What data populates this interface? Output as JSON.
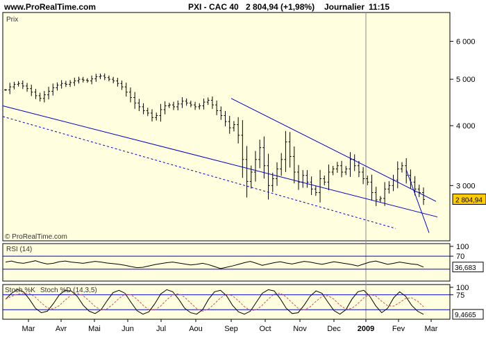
{
  "header": {
    "site": "www.ProRealTime.com",
    "instrument": "PXI - CAC 40",
    "price_change": "2 804,94 (+1,98%)",
    "frequency": "Journalier",
    "time": "11:15"
  },
  "colors": {
    "panel_bg": "#ffffe0",
    "price_line": "#000000",
    "trendline": "#0000cc",
    "tag_bg": "#ffcc00",
    "stoch_signal": "#d05050",
    "year_marker": "#888888"
  },
  "chart_data": [
    {
      "type": "ohlc",
      "panel_label": "Prix",
      "watermark": "© ProRealTime.com",
      "y_ticks": [
        3000,
        4000,
        5000,
        6000
      ],
      "y_tick_labels": [
        "3 000",
        "4 000",
        "5 000",
        "6 000"
      ],
      "y_scale": "log",
      "ylim": [
        2300,
        6800
      ],
      "last_value_label": "2 804,94",
      "last_value": 2804.94,
      "x_labels": [
        "Mar",
        "Avr",
        "Mai",
        "Jun",
        "Jul",
        "Aou",
        "Sep",
        "Oct",
        "Nov",
        "Dec",
        "2009",
        "Fev",
        "Mar"
      ],
      "year_marker": "2009",
      "series_close": [
        4750,
        4820,
        4880,
        4900,
        4840,
        4780,
        4700,
        4620,
        4560,
        4640,
        4720,
        4800,
        4860,
        4900,
        4880,
        4920,
        4960,
        5000,
        4980,
        4960,
        5010,
        5060,
        5080,
        5040,
        5000,
        4960,
        4900,
        4820,
        4700,
        4580,
        4460,
        4380,
        4300,
        4250,
        4160,
        4200,
        4320,
        4400,
        4420,
        4380,
        4440,
        4500,
        4460,
        4420,
        4380,
        4400,
        4480,
        4520,
        4420,
        4300,
        4200,
        4080,
        3960,
        4020,
        3820,
        3400,
        3060,
        3200,
        3400,
        3600,
        3300,
        3000,
        3100,
        3250,
        3400,
        3700,
        3450,
        3200,
        3050,
        3150,
        3050,
        2950,
        2900,
        3100,
        3050,
        3200,
        3250,
        3300,
        3200,
        3250,
        3400,
        3300,
        3200,
        3100,
        3050,
        2900,
        2800,
        2820,
        2950,
        3000,
        3080,
        3250,
        3300,
        3150,
        3050,
        2950,
        2900,
        2804.94
      ],
      "trendlines": [
        {
          "from": [
            "Fev 2008",
            4400
          ],
          "to": [
            "Mar 2009",
            2580
          ],
          "style": "solid"
        },
        {
          "from": [
            "Fev 2008",
            4180
          ],
          "to": [
            "Fev 2009",
            2440
          ],
          "style": "dashed"
        },
        {
          "from": [
            "Sep 2008",
            4560
          ],
          "to": [
            "Mar 2009",
            2780
          ],
          "style": "solid"
        },
        {
          "from": [
            "Fev 2009",
            3240
          ],
          "to": [
            "Mar 2009",
            2390
          ],
          "style": "solid"
        }
      ]
    },
    {
      "type": "line",
      "panel_label": "RSI (14)",
      "y_ticks": [
        70,
        100
      ],
      "guide_lines": [
        30,
        70
      ],
      "ylim": [
        0,
        100
      ],
      "last_value_label": "36,683",
      "last_value": 36.683,
      "values": [
        52,
        55,
        50,
        48,
        52,
        56,
        50,
        46,
        48,
        53,
        55,
        52,
        50,
        48,
        51,
        54,
        52,
        49,
        47,
        45,
        42,
        38,
        35,
        36,
        40,
        44,
        47,
        50,
        52,
        49,
        46,
        43,
        45,
        48,
        44,
        38,
        32,
        36,
        40,
        45,
        50,
        54,
        48,
        42,
        46,
        50,
        53,
        49,
        46,
        50,
        54,
        52,
        48,
        45,
        49,
        53,
        50,
        47,
        44,
        40,
        46,
        52,
        55,
        50,
        45,
        48,
        52,
        49,
        46,
        44,
        36.683
      ]
    },
    {
      "type": "line",
      "panel_label": "Stoch %K",
      "legend_signal": "Stoch %D (14,3,5)",
      "y_ticks": [
        75,
        100
      ],
      "guide_lines": [
        25,
        75
      ],
      "ylim": [
        0,
        100
      ],
      "last_value_label": "9,4665",
      "last_value": 9.4665,
      "values": [
        60,
        80,
        92,
        85,
        60,
        30,
        15,
        20,
        45,
        75,
        90,
        88,
        70,
        40,
        20,
        12,
        25,
        55,
        82,
        90,
        80,
        50,
        22,
        10,
        18,
        45,
        78,
        92,
        85,
        60,
        30,
        15,
        10,
        25,
        60,
        85,
        90,
        72,
        40,
        18,
        10,
        20,
        50,
        80,
        92,
        88,
        62,
        30,
        12,
        15,
        40,
        70,
        88,
        80,
        50,
        22,
        10,
        25,
        60,
        85,
        90,
        70,
        38,
        15,
        30,
        65,
        85,
        70,
        40,
        20,
        9.4665
      ]
    }
  ]
}
